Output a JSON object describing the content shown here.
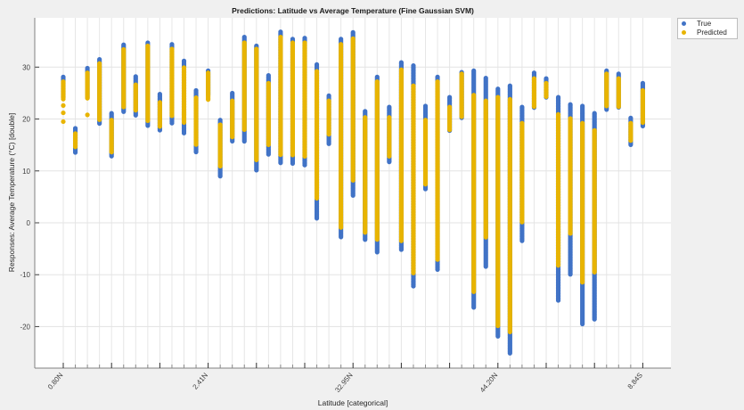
{
  "chart_data": {
    "type": "scatter",
    "title": "Predictions: Latitude vs Average Temperature (Fine Gaussian SVM)",
    "xlabel": "Latitude [categorical]",
    "ylabel": "Responses: Average Temperature (°C) [double]",
    "ylim": [
      -28,
      39.5
    ],
    "yticks": [
      -20,
      -10,
      0,
      10,
      20,
      30
    ],
    "category_count": 49,
    "x_tick_labels": [
      {
        "index": 1,
        "label": "0.80N"
      },
      {
        "index": 13,
        "label": "2.41N"
      },
      {
        "index": 25,
        "label": "32.95N"
      },
      {
        "index": 37,
        "label": "44.20N"
      },
      {
        "index": 49,
        "label": "8.84S"
      }
    ],
    "grid": true,
    "legend_placement": "outside-top-right",
    "series": [
      {
        "name": "True",
        "color": "#4173c6",
        "ranges": [
          [
            24,
            28.1
          ],
          [
            13.5,
            18.2
          ],
          [
            24,
            29.8
          ],
          [
            18.9,
            31.5
          ],
          [
            12.6,
            21.1
          ],
          [
            21.3,
            34.3
          ],
          [
            20.7,
            28.2
          ],
          [
            18.6,
            34.7
          ],
          [
            17.6,
            24.8
          ],
          [
            19.2,
            34.4
          ],
          [
            17.2,
            31.2
          ],
          [
            13.5,
            25.5
          ],
          [
            24.5,
            29.3
          ],
          [
            8.9,
            19.8
          ],
          [
            15.6,
            25
          ],
          [
            15.6,
            35.8
          ],
          [
            10,
            34.1
          ],
          [
            13.2,
            28.4
          ],
          [
            11.5,
            36.8
          ],
          [
            11.3,
            35.4
          ],
          [
            11.1,
            35.6
          ],
          [
            0.7,
            30.5
          ],
          [
            15.2,
            24.5
          ],
          [
            -2.9,
            35.4
          ],
          [
            5.2,
            36.7
          ],
          [
            -3.4,
            21.5
          ],
          [
            -5.8,
            28.1
          ],
          [
            11.6,
            22.3
          ],
          [
            -5.3,
            30.9
          ],
          [
            -12.3,
            30.3
          ],
          [
            6.4,
            22.5
          ],
          [
            -9.2,
            28.1
          ],
          [
            17.6,
            24.2
          ],
          [
            20.1,
            29
          ],
          [
            -16.3,
            29.3
          ],
          [
            -8.6,
            27.9
          ],
          [
            -22.1,
            25.8
          ],
          [
            -25.2,
            26.4
          ],
          [
            -3.6,
            22.3
          ],
          [
            22.1,
            28.9
          ],
          [
            24.1,
            27.8
          ],
          [
            -15.2,
            24.2
          ],
          [
            -10,
            22.8
          ],
          [
            -19.5,
            22.5
          ],
          [
            -18.8,
            21.1
          ],
          [
            21.8,
            29.3
          ],
          [
            22.1,
            28.7
          ],
          [
            14.8,
            20.2
          ],
          [
            18.6,
            26.9
          ]
        ]
      },
      {
        "name": "Predicted",
        "color": "#e8b400",
        "ranges": [
          [
            23.8,
            27.2
          ],
          [
            14.6,
            17.2
          ],
          [
            23.8,
            28.9
          ],
          [
            19.8,
            30.7
          ],
          [
            13.5,
            19.8
          ],
          [
            22.3,
            33.4
          ],
          [
            21.5,
            26.6
          ],
          [
            19.5,
            34.1
          ],
          [
            18.5,
            23.2
          ],
          [
            20.6,
            33.5
          ],
          [
            19.2,
            29.9
          ],
          [
            14.9,
            24.1
          ],
          [
            23.6,
            28.9
          ],
          [
            10.9,
            18.9
          ],
          [
            16.3,
            23.5
          ],
          [
            17.8,
            34.7
          ],
          [
            12,
            33.5
          ],
          [
            14.9,
            26.9
          ],
          [
            12.9,
            35.8
          ],
          [
            12.9,
            34.7
          ],
          [
            12.6,
            34.7
          ],
          [
            4.6,
            29.2
          ],
          [
            16.9,
            23.5
          ],
          [
            -0.9,
            34.4
          ],
          [
            8,
            35.5
          ],
          [
            -2,
            20.3
          ],
          [
            -3.4,
            27.2
          ],
          [
            12.6,
            20.3
          ],
          [
            -3.7,
            29.5
          ],
          [
            -9.7,
            26.4
          ],
          [
            7.2,
            19.8
          ],
          [
            -7.2,
            27.2
          ],
          [
            17.8,
            22.3
          ],
          [
            20.3,
            28.7
          ],
          [
            -13.5,
            24.6
          ],
          [
            -2.9,
            23.5
          ],
          [
            -20.1,
            24.2
          ],
          [
            -21.2,
            23.8
          ],
          [
            0,
            19.2
          ],
          [
            22.3,
            27.8
          ],
          [
            24.2,
            26.9
          ],
          [
            -8.3,
            20.9
          ],
          [
            -2.3,
            20.1
          ],
          [
            -11.5,
            19.2
          ],
          [
            -9.7,
            17.8
          ],
          [
            22.3,
            28.7
          ],
          [
            22.3,
            27.8
          ],
          [
            15.8,
            19.2
          ],
          [
            19.2,
            25.5
          ]
        ],
        "extra_points": [
          {
            "index": 1,
            "values": [
              22.6,
              21.2,
              19.5
            ]
          },
          {
            "index": 3,
            "values": [
              20.8
            ]
          }
        ]
      }
    ]
  },
  "legend": {
    "items": [
      "True",
      "Predicted"
    ]
  }
}
